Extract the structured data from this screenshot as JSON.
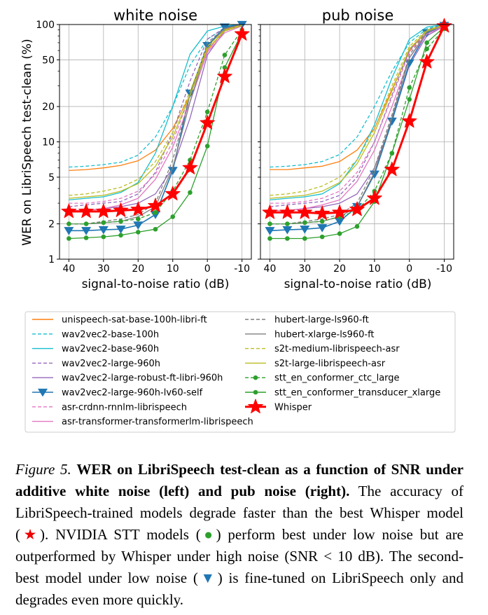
{
  "chart_data": [
    {
      "type": "line",
      "title": "white noise",
      "xlabel": "signal-to-noise ratio (dB)",
      "ylabel": "WER on LibriSpeech test-clean (%)",
      "x": [
        40,
        35,
        30,
        25,
        20,
        15,
        10,
        5,
        0,
        -5,
        -10
      ],
      "xticks": [
        "40",
        "30",
        "20",
        "10",
        "0",
        "-10"
      ],
      "yscale": "log",
      "ylim": [
        1,
        100
      ],
      "yticks": [
        "1",
        "2",
        "5",
        "10",
        "20",
        "50",
        "100"
      ],
      "grid": true,
      "series": [
        {
          "name": "unispeech-sat-base-100h-libri-ft",
          "color": "#ff7f0e",
          "dash": "solid",
          "marker": "none",
          "values": [
            5.7,
            5.8,
            6.0,
            6.3,
            6.9,
            8.5,
            13,
            25,
            60,
            90,
            100
          ]
        },
        {
          "name": "wav2vec2-base-100h",
          "color": "#17becf",
          "dash": "dashed",
          "marker": "none",
          "values": [
            6.1,
            6.2,
            6.4,
            6.7,
            7.7,
            11,
            20,
            45,
            75,
            93,
            100
          ]
        },
        {
          "name": "wav2vec2-base-960h",
          "color": "#17becf",
          "dash": "solid",
          "marker": "none",
          "values": [
            3.2,
            3.3,
            3.4,
            3.7,
            4.5,
            8,
            20,
            56,
            88,
            97,
            100
          ]
        },
        {
          "name": "wav2vec2-large-960h",
          "color": "#9467bd",
          "dash": "dashed",
          "marker": "none",
          "values": [
            2.8,
            2.9,
            3.0,
            3.1,
            3.6,
            5.5,
            12,
            33,
            75,
            94,
            100
          ]
        },
        {
          "name": "wav2vec2-large-robust-ft-libri-960h",
          "color": "#9467bd",
          "dash": "solid",
          "marker": "none",
          "values": [
            2.6,
            2.6,
            2.7,
            2.8,
            3.0,
            3.6,
            6,
            16,
            55,
            88,
            99
          ]
        },
        {
          "name": "wav2vec2-large-960h-lv60-self",
          "color": "#1f77b4",
          "dash": "solid",
          "marker": "triangle",
          "values": [
            1.75,
            1.75,
            1.78,
            1.8,
            1.95,
            2.4,
            5.7,
            26,
            66,
            95,
            100
          ]
        },
        {
          "name": "asr-crdnn-rnnlm-librispeech",
          "color": "#e377c2",
          "dash": "dashed",
          "marker": "none",
          "values": [
            3.0,
            3.0,
            3.1,
            3.3,
            3.8,
            5.3,
            10,
            25,
            60,
            88,
            98
          ]
        },
        {
          "name": "asr-transformer-transformerlm-librispeech",
          "color": "#e377c2",
          "dash": "solid",
          "marker": "none",
          "values": [
            2.6,
            2.6,
            2.7,
            2.9,
            3.3,
            4.8,
            9,
            22,
            58,
            85,
            97
          ]
        },
        {
          "name": "hubert-large-ls960-ft",
          "color": "#7f7f7f",
          "dash": "dashed",
          "marker": "none",
          "values": [
            2.0,
            2.0,
            2.1,
            2.2,
            2.4,
            3.0,
            7,
            25,
            70,
            93,
            100
          ]
        },
        {
          "name": "hubert-xlarge-ls960-ft",
          "color": "#7f7f7f",
          "dash": "solid",
          "marker": "none",
          "values": [
            2.0,
            2.0,
            2.05,
            2.1,
            2.3,
            2.8,
            6,
            22,
            65,
            92,
            100
          ]
        },
        {
          "name": "s2t-medium-librispeech-asr",
          "color": "#bcbd22",
          "dash": "dashed",
          "marker": "none",
          "values": [
            3.5,
            3.6,
            3.8,
            4.1,
            4.8,
            6.8,
            12,
            27,
            65,
            90,
            99
          ]
        },
        {
          "name": "s2t-large-librispeech-asr",
          "color": "#bcbd22",
          "dash": "solid",
          "marker": "none",
          "values": [
            3.3,
            3.4,
            3.5,
            3.8,
            4.4,
            6.2,
            11,
            25,
            62,
            88,
            98
          ]
        },
        {
          "name": "stt_en_conformer_ctc_large",
          "color": "#2ca02c",
          "dash": "dashed",
          "marker": "dot",
          "values": [
            2.0,
            2.0,
            2.05,
            2.1,
            2.2,
            2.5,
            3.8,
            7,
            18,
            55,
            90
          ]
        },
        {
          "name": "stt_en_conformer_transducer_xlarge",
          "color": "#2ca02c",
          "dash": "solid",
          "marker": "dot",
          "values": [
            1.5,
            1.52,
            1.55,
            1.6,
            1.7,
            1.8,
            2.3,
            3.7,
            9.2,
            43,
            85
          ]
        },
        {
          "name": "Whisper",
          "color": "#ff0000",
          "dash": "solid",
          "marker": "star",
          "values": [
            2.55,
            2.55,
            2.55,
            2.6,
            2.65,
            2.85,
            3.6,
            6,
            14.5,
            36,
            83
          ]
        }
      ]
    },
    {
      "type": "line",
      "title": "pub noise",
      "xlabel": "signal-to-noise ratio (dB)",
      "ylabel": "",
      "x": [
        40,
        35,
        30,
        25,
        20,
        15,
        10,
        5,
        0,
        -5,
        -10
      ],
      "xticks": [
        "40",
        "30",
        "20",
        "10",
        "0",
        "-10"
      ],
      "yscale": "log",
      "ylim": [
        1,
        100
      ],
      "grid": true,
      "series": [
        {
          "name": "unispeech-sat-base-100h-libri-ft",
          "color": "#ff7f0e",
          "dash": "solid",
          "marker": "none",
          "values": [
            5.8,
            5.8,
            6.0,
            6.2,
            6.8,
            8.5,
            13,
            28,
            60,
            88,
            100
          ]
        },
        {
          "name": "wav2vec2-base-100h",
          "color": "#17becf",
          "dash": "dashed",
          "marker": "none",
          "values": [
            6.1,
            6.2,
            6.4,
            6.8,
            7.8,
            11,
            20,
            40,
            70,
            92,
            100
          ]
        },
        {
          "name": "wav2vec2-base-960h",
          "color": "#17becf",
          "dash": "solid",
          "marker": "none",
          "values": [
            3.2,
            3.3,
            3.4,
            3.6,
            4.4,
            7,
            14,
            35,
            75,
            95,
            100
          ]
        },
        {
          "name": "wav2vec2-large-960h",
          "color": "#9467bd",
          "dash": "dashed",
          "marker": "none",
          "values": [
            2.8,
            2.9,
            3.0,
            3.1,
            3.5,
            5,
            10,
            25,
            60,
            90,
            100
          ]
        },
        {
          "name": "wav2vec2-large-robust-ft-libri-960h",
          "color": "#9467bd",
          "dash": "solid",
          "marker": "none",
          "values": [
            2.6,
            2.6,
            2.7,
            2.8,
            3.0,
            3.6,
            6,
            15,
            45,
            80,
            97
          ]
        },
        {
          "name": "wav2vec2-large-960h-lv60-self",
          "color": "#1f77b4",
          "dash": "solid",
          "marker": "triangle",
          "values": [
            1.75,
            1.78,
            1.8,
            1.85,
            2.1,
            2.8,
            5.3,
            15,
            47,
            85,
            98
          ]
        },
        {
          "name": "asr-crdnn-rnnlm-librispeech",
          "color": "#e377c2",
          "dash": "dashed",
          "marker": "none",
          "values": [
            3.0,
            3.0,
            3.1,
            3.3,
            3.8,
            5.5,
            10,
            24,
            58,
            87,
            98
          ]
        },
        {
          "name": "asr-transformer-transformerlm-librispeech",
          "color": "#e377c2",
          "dash": "solid",
          "marker": "none",
          "values": [
            2.6,
            2.6,
            2.7,
            2.9,
            3.2,
            4.6,
            8.5,
            20,
            52,
            83,
            97
          ]
        },
        {
          "name": "hubert-large-ls960-ft",
          "color": "#7f7f7f",
          "dash": "dashed",
          "marker": "none",
          "values": [
            2.0,
            2.0,
            2.1,
            2.2,
            2.4,
            3.0,
            6,
            17,
            55,
            88,
            99
          ]
        },
        {
          "name": "hubert-xlarge-ls960-ft",
          "color": "#7f7f7f",
          "dash": "solid",
          "marker": "none",
          "values": [
            2.0,
            2.0,
            2.05,
            2.1,
            2.3,
            2.8,
            5.5,
            16,
            52,
            86,
            99
          ]
        },
        {
          "name": "s2t-medium-librispeech-asr",
          "color": "#bcbd22",
          "dash": "dashed",
          "marker": "none",
          "values": [
            3.5,
            3.6,
            3.8,
            4.2,
            5.0,
            7,
            13,
            30,
            65,
            90,
            99
          ]
        },
        {
          "name": "s2t-large-librispeech-asr",
          "color": "#bcbd22",
          "dash": "solid",
          "marker": "none",
          "values": [
            3.3,
            3.4,
            3.5,
            3.8,
            4.5,
            6.5,
            12,
            27,
            62,
            88,
            98
          ]
        },
        {
          "name": "stt_en_conformer_ctc_large",
          "color": "#2ca02c",
          "dash": "dashed",
          "marker": "dot",
          "values": [
            2.0,
            2.0,
            2.05,
            2.1,
            2.3,
            2.6,
            3.8,
            8,
            29,
            62,
            92
          ]
        },
        {
          "name": "stt_en_conformer_transducer_xlarge",
          "color": "#2ca02c",
          "dash": "solid",
          "marker": "dot",
          "values": [
            1.5,
            1.5,
            1.5,
            1.55,
            1.65,
            1.9,
            3.1,
            8,
            23,
            70,
            95
          ]
        },
        {
          "name": "Whisper",
          "color": "#ff0000",
          "dash": "solid",
          "marker": "star",
          "values": [
            2.5,
            2.5,
            2.5,
            2.45,
            2.5,
            2.65,
            3.3,
            5.8,
            15,
            48,
            97
          ]
        }
      ]
    }
  ],
  "caption": {
    "figure_number": "Figure 5.",
    "bold_title": "WER on LibriSpeech test-clean as a function of SNR under additive white noise (left) and pub noise (right).",
    "text_1": "The accuracy of LibriSpeech-trained models degrade faster than the best Whisper model (",
    "star_symbol": "★",
    "text_2": "). NVIDIA STT models (",
    "dot_symbol": "●",
    "text_3": ") perform best under low noise but are outperformed by Whisper under high noise (SNR < 10 dB). The second-best model under low noise (",
    "triangle_symbol": "▼",
    "text_4": ") is fine-tuned on LibriSpeech only and degrades even more quickly."
  }
}
